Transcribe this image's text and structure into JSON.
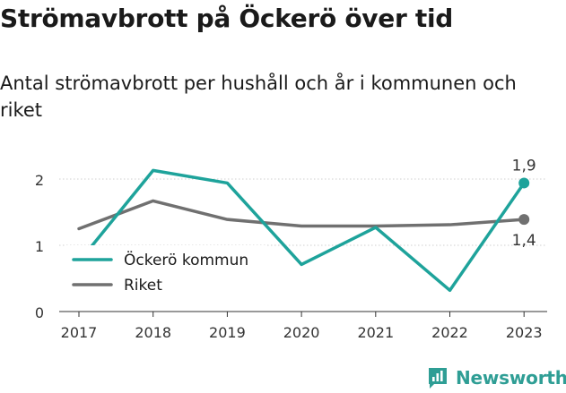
{
  "title": "Strömavbrott på Öckerö över tid",
  "subtitle": "Antal strömavbrott per hushåll och år i kommunen och riket",
  "brand": {
    "name": "Newsworthy",
    "icon": "bar-chart-logo-icon",
    "color": "#2f9e95"
  },
  "chart_data": {
    "type": "line",
    "x": [
      "2017",
      "2018",
      "2019",
      "2020",
      "2021",
      "2022",
      "2023"
    ],
    "series": [
      {
        "name": "Öckerö kommun",
        "color": "#1ea39b",
        "values": [
          0.75,
          2.13,
          1.94,
          0.71,
          1.27,
          0.32,
          1.94
        ]
      },
      {
        "name": "Riket",
        "color": "#707070",
        "values": [
          1.25,
          1.67,
          1.39,
          1.29,
          1.29,
          1.31,
          1.39
        ]
      }
    ],
    "yticks": [
      {
        "value": 0,
        "label": "0"
      },
      {
        "value": 1,
        "label": "1"
      },
      {
        "value": 2,
        "label": "2"
      }
    ],
    "ylim": [
      0,
      2.4
    ],
    "grid": true,
    "legend": "bottom-left",
    "end_labels": [
      "1,9",
      "1,4"
    ]
  }
}
